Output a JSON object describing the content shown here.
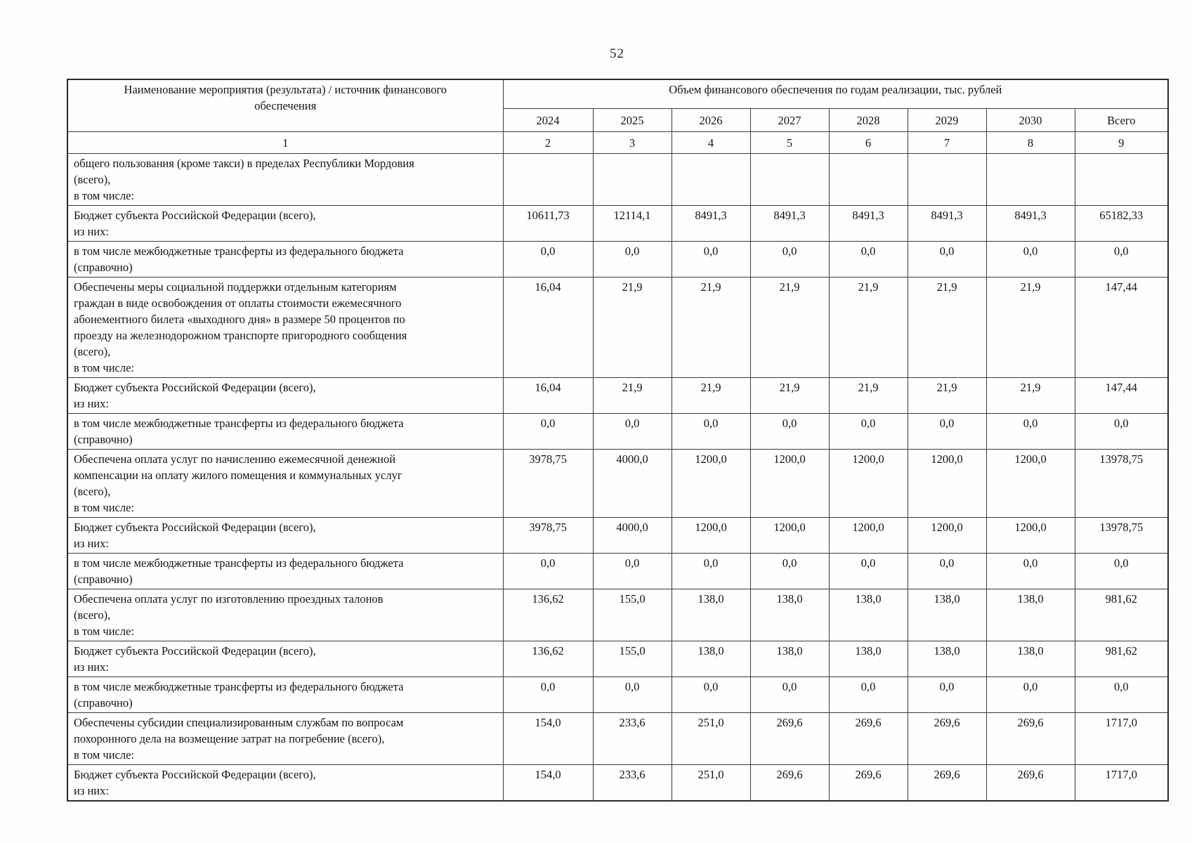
{
  "page_number": "52",
  "table": {
    "header": {
      "col1": "Наименование мероприятия (результата) / источник финансового\nобеспечения",
      "group": "Объем финансового обеспечения по годам реализации, тыс. рублей",
      "years": [
        "2024",
        "2025",
        "2026",
        "2027",
        "2028",
        "2029",
        "2030",
        "Всего"
      ],
      "indices": [
        "1",
        "2",
        "3",
        "4",
        "5",
        "6",
        "7",
        "8",
        "9"
      ]
    },
    "rows": [
      {
        "label": "общего пользования (кроме такси) в пределах Республики Мордовия\n(всего),\nв том числе:",
        "values": [
          "",
          "",
          "",
          "",
          "",
          "",
          "",
          ""
        ]
      },
      {
        "label": "Бюджет субъекта Российской Федерации (всего),\nиз них:",
        "values": [
          "10611,73",
          "12114,1",
          "8491,3",
          "8491,3",
          "8491,3",
          "8491,3",
          "8491,3",
          "65182,33"
        ]
      },
      {
        "label": "в том числе межбюджетные трансферты из федерального бюджета\n(справочно)",
        "values": [
          "0,0",
          "0,0",
          "0,0",
          "0,0",
          "0,0",
          "0,0",
          "0,0",
          "0,0"
        ]
      },
      {
        "label": "Обеспечены меры социальной поддержки отдельным категориям\nграждан в виде освобождения от оплаты стоимости ежемесячного\nабонементного билета «выходного дня» в размере 50 процентов по\nпроезду на железнодорожном транспорте пригородного сообщения\n(всего),\nв том числе:",
        "values": [
          "16,04",
          "21,9",
          "21,9",
          "21,9",
          "21,9",
          "21,9",
          "21,9",
          "147,44"
        ]
      },
      {
        "label": "Бюджет субъекта Российской Федерации (всего),\nиз них:",
        "values": [
          "16,04",
          "21,9",
          "21,9",
          "21,9",
          "21,9",
          "21,9",
          "21,9",
          "147,44"
        ]
      },
      {
        "label": "в том числе межбюджетные трансферты из федерального бюджета\n(справочно)",
        "values": [
          "0,0",
          "0,0",
          "0,0",
          "0,0",
          "0,0",
          "0,0",
          "0,0",
          "0,0"
        ]
      },
      {
        "label": "Обеспечена оплата услуг по начислению ежемесячной денежной\nкомпенсации на оплату жилого помещения и коммунальных услуг\n(всего),\nв том числе:",
        "values": [
          "3978,75",
          "4000,0",
          "1200,0",
          "1200,0",
          "1200,0",
          "1200,0",
          "1200,0",
          "13978,75"
        ]
      },
      {
        "label": "Бюджет субъекта Российской Федерации (всего),\nиз них:",
        "values": [
          "3978,75",
          "4000,0",
          "1200,0",
          "1200,0",
          "1200,0",
          "1200,0",
          "1200,0",
          "13978,75"
        ]
      },
      {
        "label": "в том числе межбюджетные трансферты из федерального бюджета\n(справочно)",
        "values": [
          "0,0",
          "0,0",
          "0,0",
          "0,0",
          "0,0",
          "0,0",
          "0,0",
          "0,0"
        ]
      },
      {
        "label": "Обеспечена оплата услуг по изготовлению проездных талонов\n(всего),\nв том числе:",
        "values": [
          "136,62",
          "155,0",
          "138,0",
          "138,0",
          "138,0",
          "138,0",
          "138,0",
          "981,62"
        ]
      },
      {
        "label": "Бюджет субъекта Российской Федерации (всего),\nиз них:",
        "values": [
          "136,62",
          "155,0",
          "138,0",
          "138,0",
          "138,0",
          "138,0",
          "138,0",
          "981,62"
        ]
      },
      {
        "label": "в том числе межбюджетные трансферты из федерального бюджета\n(справочно)",
        "values": [
          "0,0",
          "0,0",
          "0,0",
          "0,0",
          "0,0",
          "0,0",
          "0,0",
          "0,0"
        ]
      },
      {
        "label": "Обеспечены субсидии специализированным службам по вопросам\nпохоронного дела на возмещение затрат на погребение (всего),\nв том числе:",
        "values": [
          "154,0",
          "233,6",
          "251,0",
          "269,6",
          "269,6",
          "269,6",
          "269,6",
          "1717,0"
        ]
      },
      {
        "label": "Бюджет субъекта Российской Федерации (всего),\nиз них:",
        "values": [
          "154,0",
          "233,6",
          "251,0",
          "269,6",
          "269,6",
          "269,6",
          "269,6",
          "1717,0"
        ]
      }
    ]
  }
}
